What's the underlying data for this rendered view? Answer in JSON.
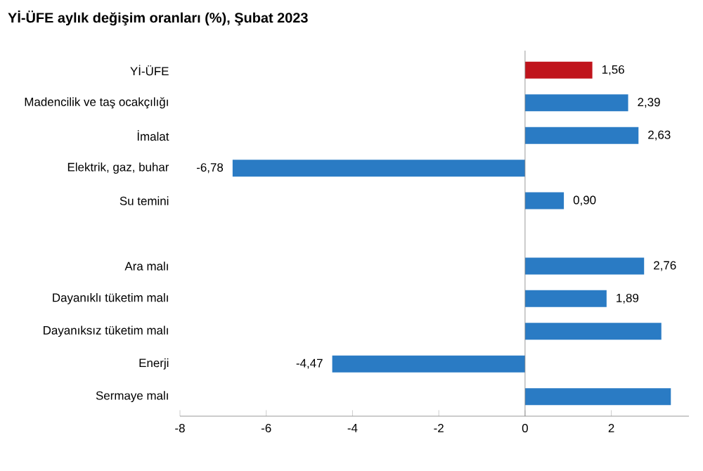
{
  "chart_data": {
    "type": "bar",
    "orientation": "horizontal",
    "title": "Yİ-ÜFE aylık değişim oranları (%), Şubat 2023",
    "categories": [
      "Yİ-ÜFE",
      "Madencilik ve taş ocakçılığı",
      "İmalat",
      "Elektrik, gaz, buhar",
      "Su temini",
      null,
      "Ara malı",
      "Dayanıklı tüketim malı",
      "Dayanıksız tüketim malı",
      "Enerji",
      "Sermaye malı"
    ],
    "values": [
      1.56,
      2.39,
      2.63,
      -6.78,
      0.9,
      null,
      2.76,
      1.89,
      3.16,
      -4.47,
      3.38
    ],
    "value_labels": [
      "1,56",
      "2,39",
      "2,63",
      "-6,78",
      "0,90",
      null,
      "2,76",
      "1,89",
      null,
      "-4,47",
      null
    ],
    "colors": [
      "#c0141c",
      "#2a7bc4",
      "#2a7bc4",
      "#2a7bc4",
      "#2a7bc4",
      null,
      "#2a7bc4",
      "#2a7bc4",
      "#2a7bc4",
      "#2a7bc4",
      "#2a7bc4"
    ],
    "xlim": [
      -8,
      3.8
    ],
    "xticks": [
      -8,
      -6,
      -4,
      -2,
      0,
      2
    ]
  }
}
